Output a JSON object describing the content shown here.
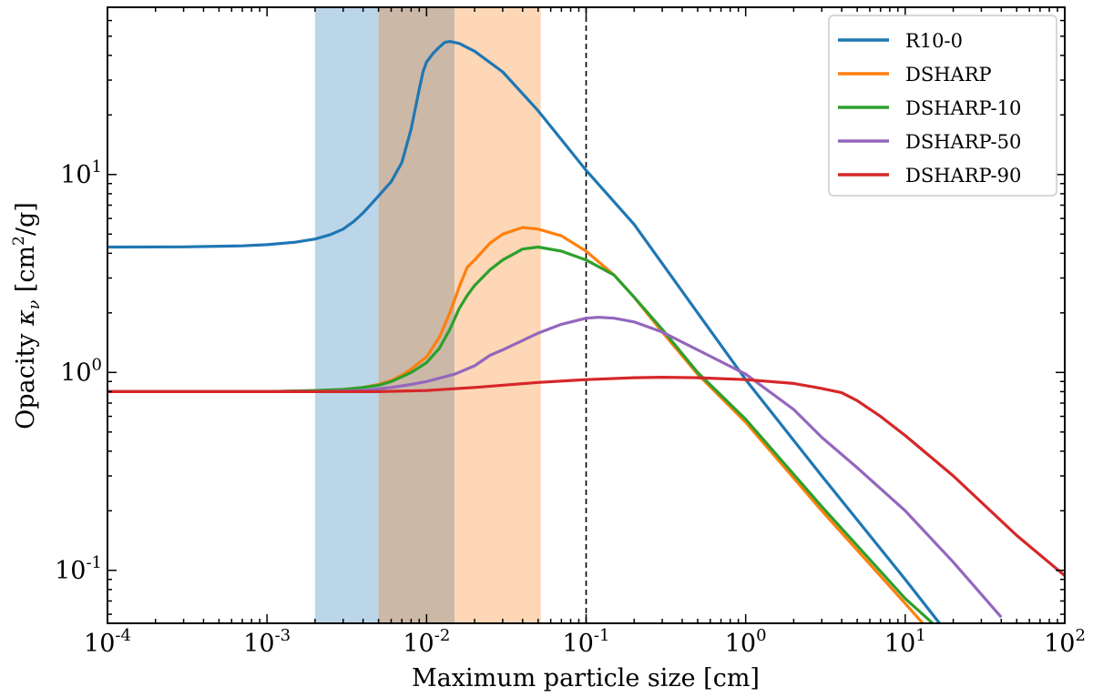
{
  "chart_data": {
    "type": "line",
    "xscale": "log",
    "yscale": "log",
    "xlabel": "Maximum particle size [cm]",
    "ylabel_prefix": "Opacity ",
    "ylabel_symbol": "κ",
    "ylabel_subscript": "ν",
    "ylabel_unit_open": " [cm",
    "ylabel_unit_exp": "2",
    "ylabel_unit_close": "/g]",
    "xlim": [
      0.0001,
      100
    ],
    "ylim": [
      0.054,
      70
    ],
    "xticks": [
      {
        "value": 0.0001,
        "base": "10",
        "exp": "-4"
      },
      {
        "value": 0.001,
        "base": "10",
        "exp": "-3"
      },
      {
        "value": 0.01,
        "base": "10",
        "exp": "-2"
      },
      {
        "value": 0.1,
        "base": "10",
        "exp": "-1"
      },
      {
        "value": 1,
        "base": "10",
        "exp": "0"
      },
      {
        "value": 10,
        "base": "10",
        "exp": "1"
      },
      {
        "value": 100,
        "base": "10",
        "exp": "2"
      }
    ],
    "yticks": [
      {
        "value": 0.1,
        "base": "10",
        "exp": "-1"
      },
      {
        "value": 1,
        "base": "10",
        "exp": "0"
      },
      {
        "value": 10,
        "base": "10",
        "exp": "1"
      }
    ],
    "shaded_regions": [
      {
        "x0": 0.002,
        "x1": 0.005,
        "color": "#bcd6e9"
      },
      {
        "x0": 0.005,
        "x1": 0.015,
        "color": "#cbb8a7"
      },
      {
        "x0": 0.015,
        "x1": 0.052,
        "color": "#fdd7b6"
      }
    ],
    "vline": {
      "x": 0.1,
      "style": "dashed",
      "color": "#000000"
    },
    "legend_position": "top-right",
    "series": [
      {
        "name": "R10-0",
        "color": "#1f77b4",
        "points": [
          [
            0.0001,
            4.3
          ],
          [
            0.0003,
            4.31
          ],
          [
            0.0007,
            4.36
          ],
          [
            0.001,
            4.42
          ],
          [
            0.0015,
            4.55
          ],
          [
            0.002,
            4.72
          ],
          [
            0.0025,
            4.97
          ],
          [
            0.003,
            5.3
          ],
          [
            0.0035,
            5.8
          ],
          [
            0.004,
            6.4
          ],
          [
            0.0045,
            7.1
          ],
          [
            0.005,
            7.8
          ],
          [
            0.006,
            9.2
          ],
          [
            0.007,
            11.5
          ],
          [
            0.008,
            17
          ],
          [
            0.009,
            27
          ],
          [
            0.0095,
            33
          ],
          [
            0.01,
            37
          ],
          [
            0.011,
            41
          ],
          [
            0.012,
            44
          ],
          [
            0.013,
            46.5
          ],
          [
            0.014,
            47
          ],
          [
            0.016,
            46
          ],
          [
            0.02,
            42
          ],
          [
            0.03,
            33
          ],
          [
            0.05,
            21
          ],
          [
            0.07,
            15
          ],
          [
            0.1,
            10.5
          ],
          [
            0.2,
            5.6
          ],
          [
            0.5,
            2.0
          ],
          [
            1,
            0.92
          ],
          [
            3,
            0.3
          ],
          [
            10,
            0.09
          ],
          [
            20,
            0.044
          ]
        ]
      },
      {
        "name": "DSHARP",
        "color": "#ff7f0e",
        "points": [
          [
            0.0001,
            0.8
          ],
          [
            0.001,
            0.8
          ],
          [
            0.002,
            0.81
          ],
          [
            0.003,
            0.82
          ],
          [
            0.004,
            0.84
          ],
          [
            0.005,
            0.87
          ],
          [
            0.006,
            0.91
          ],
          [
            0.007,
            0.97
          ],
          [
            0.008,
            1.04
          ],
          [
            0.01,
            1.2
          ],
          [
            0.012,
            1.5
          ],
          [
            0.014,
            2.0
          ],
          [
            0.016,
            2.7
          ],
          [
            0.018,
            3.4
          ],
          [
            0.02,
            3.7
          ],
          [
            0.025,
            4.5
          ],
          [
            0.03,
            5.0
          ],
          [
            0.04,
            5.4
          ],
          [
            0.05,
            5.3
          ],
          [
            0.07,
            4.9
          ],
          [
            0.1,
            4.1
          ],
          [
            0.15,
            3.1
          ],
          [
            0.2,
            2.4
          ],
          [
            0.3,
            1.6
          ],
          [
            0.5,
            0.98
          ],
          [
            1,
            0.56
          ],
          [
            3,
            0.2
          ],
          [
            10,
            0.068
          ],
          [
            15,
            0.047
          ]
        ]
      },
      {
        "name": "DSHARP-10",
        "color": "#2ca02c",
        "points": [
          [
            0.0001,
            0.8
          ],
          [
            0.001,
            0.8
          ],
          [
            0.002,
            0.81
          ],
          [
            0.003,
            0.82
          ],
          [
            0.004,
            0.84
          ],
          [
            0.005,
            0.86
          ],
          [
            0.006,
            0.9
          ],
          [
            0.007,
            0.95
          ],
          [
            0.008,
            1.0
          ],
          [
            0.01,
            1.12
          ],
          [
            0.012,
            1.32
          ],
          [
            0.014,
            1.65
          ],
          [
            0.016,
            2.1
          ],
          [
            0.018,
            2.45
          ],
          [
            0.02,
            2.75
          ],
          [
            0.025,
            3.3
          ],
          [
            0.03,
            3.7
          ],
          [
            0.04,
            4.2
          ],
          [
            0.05,
            4.3
          ],
          [
            0.07,
            4.1
          ],
          [
            0.1,
            3.7
          ],
          [
            0.15,
            3.1
          ],
          [
            0.2,
            2.4
          ],
          [
            0.3,
            1.65
          ],
          [
            0.5,
            1.0
          ],
          [
            1,
            0.58
          ],
          [
            3,
            0.21
          ],
          [
            10,
            0.072
          ],
          [
            18,
            0.047
          ]
        ]
      },
      {
        "name": "DSHARP-50",
        "color": "#9467bd",
        "points": [
          [
            0.0001,
            0.8
          ],
          [
            0.001,
            0.8
          ],
          [
            0.002,
            0.8
          ],
          [
            0.004,
            0.81
          ],
          [
            0.006,
            0.84
          ],
          [
            0.008,
            0.87
          ],
          [
            0.01,
            0.9
          ],
          [
            0.015,
            0.98
          ],
          [
            0.02,
            1.08
          ],
          [
            0.025,
            1.22
          ],
          [
            0.03,
            1.3
          ],
          [
            0.04,
            1.45
          ],
          [
            0.05,
            1.58
          ],
          [
            0.07,
            1.75
          ],
          [
            0.1,
            1.88
          ],
          [
            0.12,
            1.9
          ],
          [
            0.15,
            1.88
          ],
          [
            0.2,
            1.8
          ],
          [
            0.3,
            1.6
          ],
          [
            0.5,
            1.3
          ],
          [
            1,
            0.98
          ],
          [
            2,
            0.65
          ],
          [
            3,
            0.47
          ],
          [
            5,
            0.33
          ],
          [
            10,
            0.2
          ],
          [
            20,
            0.11
          ],
          [
            40,
            0.058
          ]
        ]
      },
      {
        "name": "DSHARP-90",
        "color": "#d62728",
        "points": [
          [
            0.0001,
            0.8
          ],
          [
            0.001,
            0.8
          ],
          [
            0.003,
            0.8
          ],
          [
            0.005,
            0.8
          ],
          [
            0.01,
            0.81
          ],
          [
            0.02,
            0.84
          ],
          [
            0.05,
            0.89
          ],
          [
            0.1,
            0.92
          ],
          [
            0.2,
            0.94
          ],
          [
            0.3,
            0.945
          ],
          [
            0.5,
            0.94
          ],
          [
            1,
            0.92
          ],
          [
            2,
            0.88
          ],
          [
            3,
            0.83
          ],
          [
            4,
            0.79
          ],
          [
            5,
            0.72
          ],
          [
            7,
            0.6
          ],
          [
            10,
            0.48
          ],
          [
            20,
            0.3
          ],
          [
            50,
            0.15
          ],
          [
            100,
            0.094
          ]
        ]
      }
    ]
  }
}
